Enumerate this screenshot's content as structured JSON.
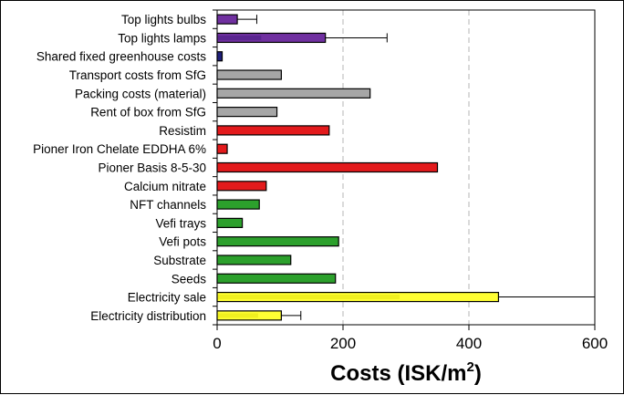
{
  "chart_data": {
    "type": "bar",
    "orientation": "horizontal",
    "xlabel_main": "Costs (ISK/m",
    "xlabel_sup": "2",
    "xlabel_close": ")",
    "xlim": [
      0,
      600
    ],
    "xticks": [
      0,
      200,
      400,
      600
    ],
    "grid": "vertical dashed",
    "categories": [
      "Top lights bulbs",
      "Top lights lamps",
      "Shared fixed greenhouse costs",
      "Transport costs from SfG",
      "Packing costs (material)",
      "Rent of box from SfG",
      "Resistim",
      "Pioner Iron Chelate EDDHA 6%",
      "Pioner Basis 8-5-30",
      "Calcium nitrate",
      "NFT channels",
      "Vefi trays",
      "Vefi pots",
      "Substrate",
      "Seeds",
      "Electricity sale",
      "Electricity distribution"
    ],
    "values": [
      32,
      172,
      8,
      102,
      243,
      95,
      178,
      16,
      350,
      78,
      67,
      40,
      193,
      117,
      188,
      447,
      102
    ],
    "inner_values": [
      null,
      70,
      null,
      null,
      null,
      null,
      null,
      null,
      null,
      null,
      null,
      null,
      null,
      null,
      null,
      290,
      65
    ],
    "error_high": [
      63,
      270,
      null,
      null,
      null,
      null,
      null,
      null,
      null,
      null,
      null,
      null,
      null,
      null,
      null,
      600,
      133
    ],
    "colors": [
      "#7030a0",
      "#7030a0",
      "#1f1f7a",
      "#a6a6a6",
      "#a6a6a6",
      "#a6a6a6",
      "#e31a1c",
      "#e31a1c",
      "#e31a1c",
      "#e31a1c",
      "#2ca02c",
      "#2ca02c",
      "#2ca02c",
      "#2ca02c",
      "#2ca02c",
      "#ffff33",
      "#ffff33"
    ],
    "inner_colors": [
      null,
      "#5a2590",
      null,
      null,
      null,
      null,
      null,
      null,
      null,
      null,
      null,
      null,
      null,
      null,
      null,
      "#f0f020",
      "#f0f020"
    ]
  }
}
